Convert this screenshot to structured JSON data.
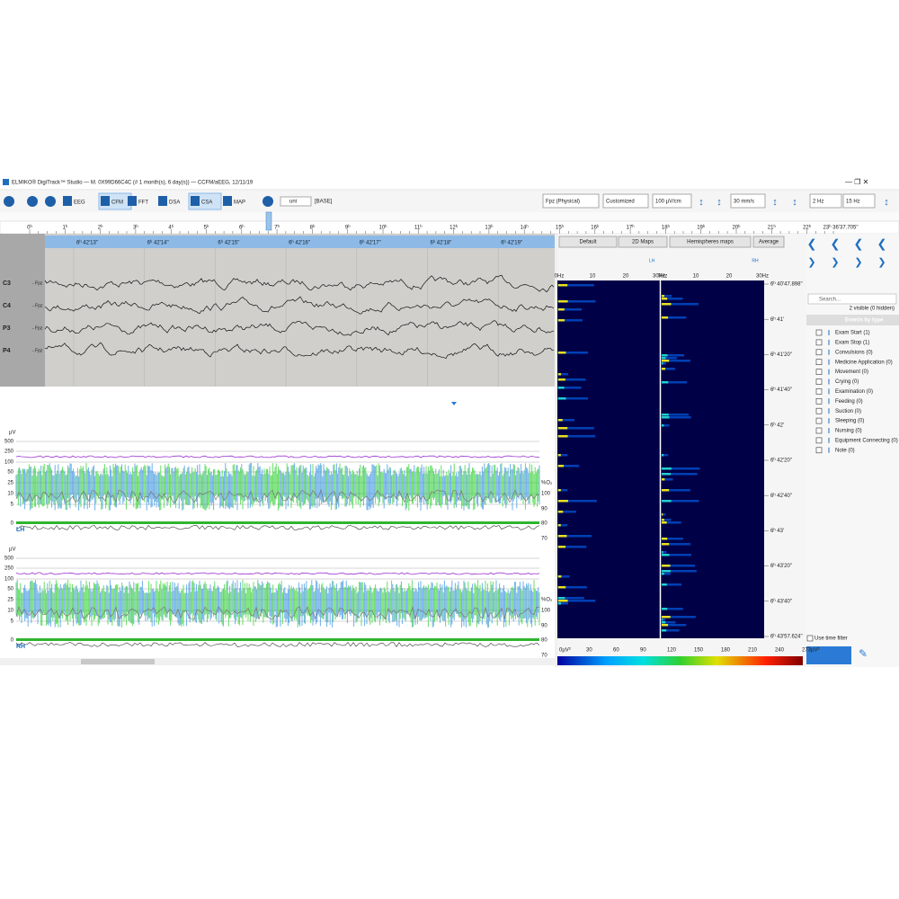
{
  "window": {
    "title": "ELMIKO® DigiTrack™ Studio — M. 0X99D66C4C (# 1 month(s), 6 day(s)) — CCFM/aEEG, 12/11/19"
  },
  "toolbar": {
    "buttons": [
      "EEG",
      "CFM",
      "FFT",
      "DSA",
      "CSA",
      "MAP"
    ],
    "montage": "uni",
    "base": "[BASE]",
    "dropdowns": [
      "Fpz (Physical)",
      "Customized",
      "100 µV/cm",
      "30 mm/s",
      "2 Hz",
      "15 Hz"
    ]
  },
  "ruler": {
    "hours": [
      "0ʰ",
      "1ʰ",
      "2ʰ",
      "3ʰ",
      "4ʰ",
      "5ʰ",
      "6ʰ",
      "7ʰ",
      "8ʰ",
      "9ʰ",
      "10ʰ",
      "11ʰ",
      "12ʰ",
      "13ʰ",
      "14ʰ",
      "15ʰ",
      "16ʰ",
      "17ʰ",
      "18ʰ",
      "19ʰ",
      "20ʰ",
      "21ʰ",
      "22ʰ"
    ],
    "end": "23ʰ 36'37.705\""
  },
  "eeg": {
    "times": [
      "6ʰ 42'13\"",
      "6ʰ 42'14\"",
      "6ʰ 42'15\"",
      "6ʰ 42'16\"",
      "6ʰ 42'17\"",
      "6ʰ 42'18\"",
      "6ʰ 42'19\""
    ],
    "channels": [
      "C3",
      "C4",
      "P3",
      "P4"
    ],
    "reference": "- Fpz"
  },
  "aeeg": {
    "unit": "µV",
    "scale": [
      "500",
      "250",
      "100",
      "50",
      "25",
      "10",
      "5",
      "0"
    ],
    "spo2_unit": "%O₂",
    "spo2_scale": [
      "100",
      "90",
      "80",
      "70"
    ],
    "panels": [
      "LH",
      "RH"
    ]
  },
  "dsa": {
    "buttons": [
      "Default",
      "2D Maps",
      "Hemispheres maps",
      "Average"
    ],
    "hemispheres": [
      "LH",
      "RH"
    ],
    "freq": [
      "0Hz",
      "10",
      "20",
      "30Hz"
    ],
    "times": [
      "6ʰ 40'47.898\"",
      "6ʰ 41'",
      "6ʰ 41'20\"",
      "6ʰ 41'40\"",
      "6ʰ 42'",
      "6ʰ 42'20\"",
      "6ʰ 42'40\"",
      "6ʰ 43'",
      "6ʰ 43'20\"",
      "6ʰ 43'40\"",
      "6ʰ 43'57.624\""
    ],
    "colorscale": [
      "0µV²",
      "30",
      "60",
      "90",
      "120",
      "150",
      "180",
      "210",
      "240",
      "273µV²"
    ]
  },
  "events": {
    "search": "Search...",
    "visible": "2 visible (0 hidden)",
    "header": "Events by type",
    "items": [
      "Exam Start (1)",
      "Exam Stop (1)",
      "Convulsions (0)",
      "Medicine Application (0)",
      "Movement (0)",
      "Crying (0)",
      "Examination (0)",
      "Feeding (0)",
      "Suction (0)",
      "Sleeping (0)",
      "Nursing (0)",
      "Equipment Connecting (0)",
      "Note (0)"
    ],
    "time_filter": "Use time filter"
  }
}
